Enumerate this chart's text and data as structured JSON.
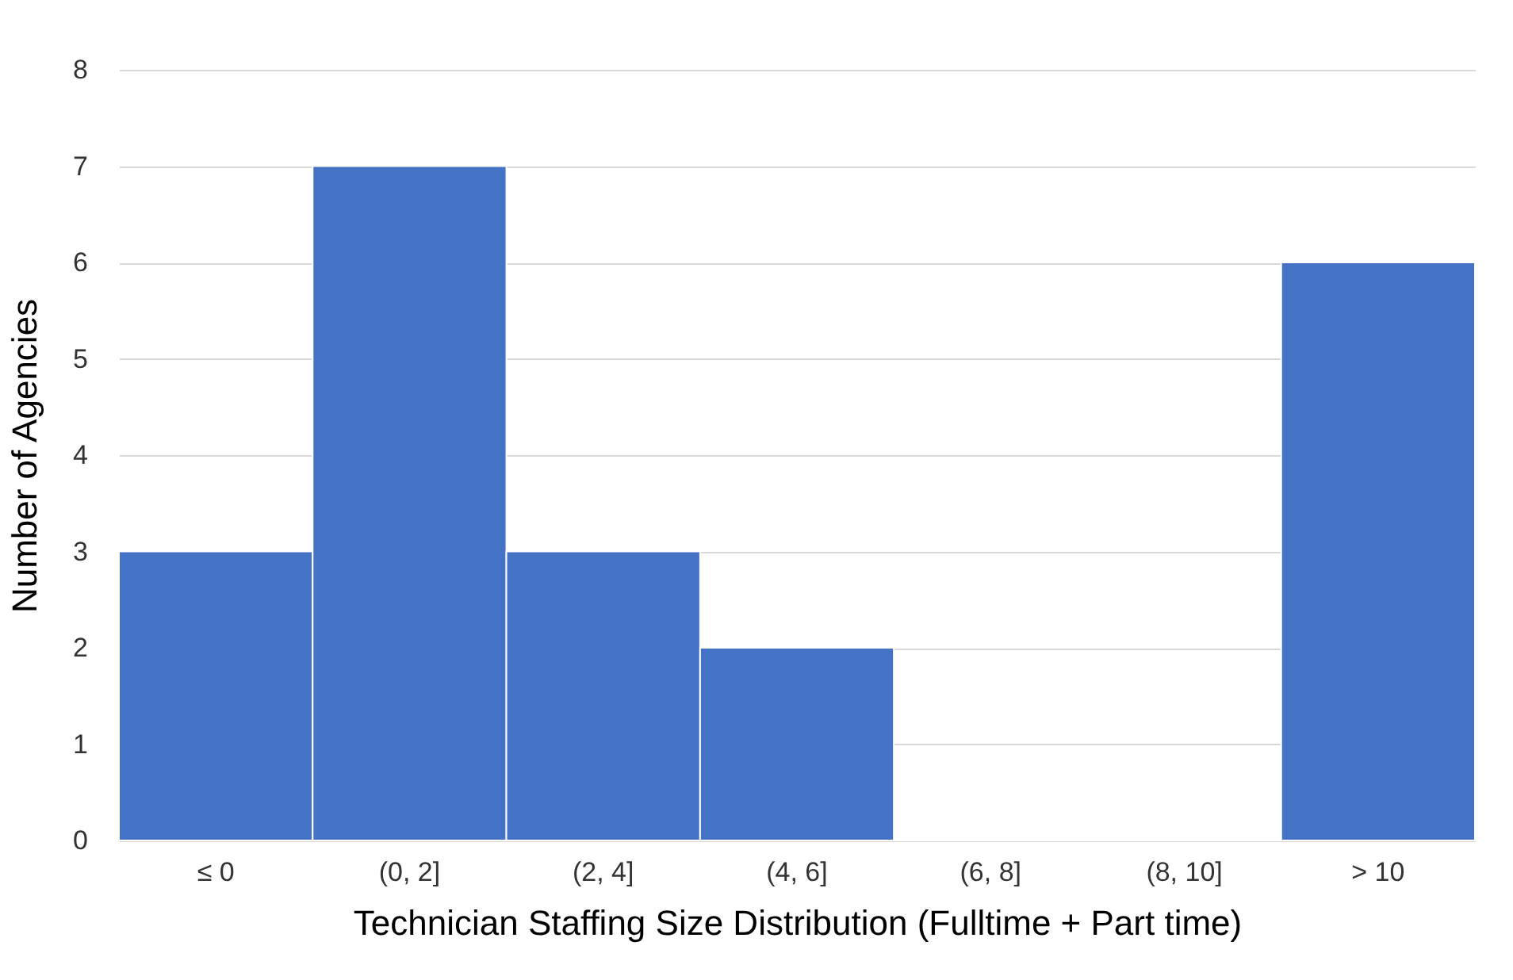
{
  "chart_data": {
    "type": "bar",
    "xlabel": "Technician Staffing Size Distribution (Fulltime + Part time)",
    "ylabel": "Number of Agencies",
    "categories": [
      "≤ 0",
      "(0, 2]",
      "(2, 4]",
      "(4, 6]",
      "(6, 8]",
      "(8, 10]",
      "> 10"
    ],
    "values": [
      3,
      7,
      3,
      2,
      0,
      0,
      6
    ],
    "color": "#4472c4",
    "ylim": [
      0,
      8
    ],
    "yticks": [
      0,
      1,
      2,
      3,
      4,
      5,
      6,
      7,
      8
    ],
    "grid": "y"
  }
}
